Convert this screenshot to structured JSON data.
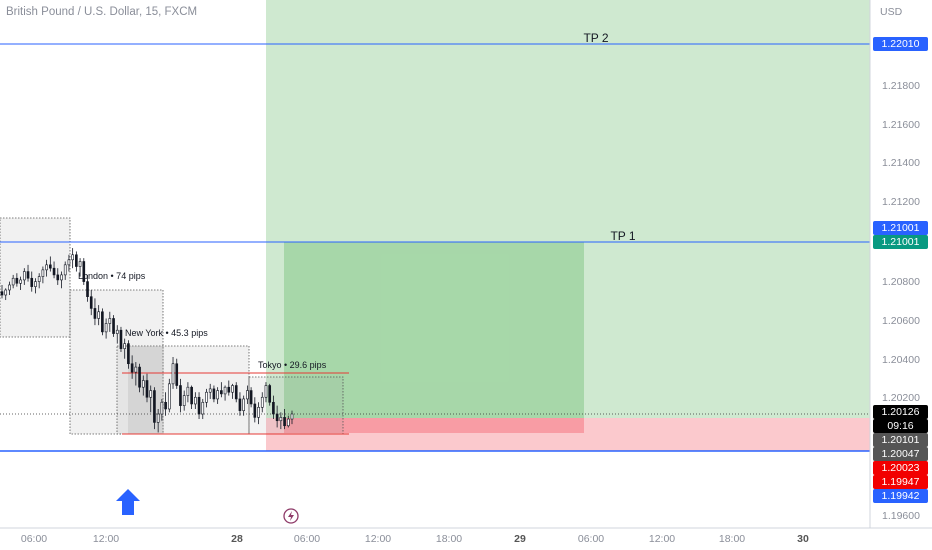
{
  "header": {
    "symbol": "British Pound / U.S. Dollar, 15, FXCM"
  },
  "axis": {
    "currency": "USD"
  },
  "colors": {
    "up": "#26a69a",
    "down": "#ef5350",
    "candle": "#131722",
    "blue_line": "#2962ff",
    "green_zone": "#4caf50",
    "red_zone": "#f23645"
  },
  "chart_data": {
    "type": "candlestick",
    "title": "British Pound / U.S. Dollar, 15, FXCM",
    "y_axis": {
      "label": "USD",
      "range": [
        1.1945,
        1.226
      ],
      "ticks": [
        "1.21800",
        "1.21600",
        "1.21400",
        "1.21200",
        "1.20800",
        "1.20600",
        "1.20400",
        "1.20200",
        "1.19600"
      ]
    },
    "x_axis": {
      "ticks": [
        "06:00",
        "12:00",
        "28",
        "06:00",
        "12:00",
        "18:00",
        "29",
        "06:00",
        "12:00",
        "18:00",
        "30"
      ]
    },
    "horizontal_lines": [
      {
        "label": "TP 2",
        "price": 1.2201
      },
      {
        "label": "TP 1",
        "price": 1.21001
      },
      {
        "label": "",
        "price": 1.19942
      }
    ],
    "price_labels": [
      {
        "value": "1.22010",
        "color": "#2962ff"
      },
      {
        "value": "1.21001",
        "color": "#2962ff"
      },
      {
        "value": "1.21001",
        "color": "#089981"
      },
      {
        "value": "1.20126",
        "color": "#000000"
      },
      {
        "value": "09:16",
        "color": "#000000"
      },
      {
        "value": "1.20101",
        "color": "#555555"
      },
      {
        "value": "1.20047",
        "color": "#555555"
      },
      {
        "value": "1.20023",
        "color": "#f20000"
      },
      {
        "value": "1.19947",
        "color": "#f20000"
      },
      {
        "value": "1.19942",
        "color": "#2962ff"
      }
    ],
    "sessions": [
      {
        "label": "London • 74 pips",
        "high": 1.2112,
        "low": 1.2038
      },
      {
        "label": "New York • 45.3 pips",
        "high": 1.2047,
        "low": 1.20017
      },
      {
        "label": "Tokyo • 29.6 pips",
        "high": 1.2034,
        "low": 1.20044
      }
    ],
    "positions": [
      {
        "entry": 1.20126,
        "target": 1.2201,
        "stop": 1.19942
      },
      {
        "entry": 1.20126,
        "target": 1.21001,
        "stop": 1.20047
      }
    ],
    "candles": [
      [
        1.2086,
        1.209,
        1.2082,
        1.2084
      ],
      [
        1.2084,
        1.2088,
        1.2081,
        1.2087
      ],
      [
        1.2087,
        1.2092,
        1.2084,
        1.209
      ],
      [
        1.209,
        1.2096,
        1.2088,
        1.2094
      ],
      [
        1.2094,
        1.2097,
        1.2089,
        1.2091
      ],
      [
        1.2091,
        1.2095,
        1.2087,
        1.2093
      ],
      [
        1.2093,
        1.21,
        1.209,
        1.2098
      ],
      [
        1.2098,
        1.2102,
        1.2092,
        1.2094
      ],
      [
        1.2094,
        1.2098,
        1.2086,
        1.2089
      ],
      [
        1.2089,
        1.2094,
        1.2085,
        1.2092
      ],
      [
        1.2092,
        1.2097,
        1.2088,
        1.2095
      ],
      [
        1.2095,
        1.2101,
        1.2091,
        1.2099
      ],
      [
        1.2099,
        1.2105,
        1.2095,
        1.2102
      ],
      [
        1.2102,
        1.2107,
        1.2098,
        1.21
      ],
      [
        1.21,
        1.2104,
        1.2094,
        1.2096
      ],
      [
        1.2096,
        1.21,
        1.209,
        1.2093
      ],
      [
        1.2093,
        1.2098,
        1.2088,
        1.2096
      ],
      [
        1.2096,
        1.2104,
        1.2093,
        1.2102
      ],
      [
        1.2102,
        1.2108,
        1.2098,
        1.2105
      ],
      [
        1.2105,
        1.2112,
        1.21,
        1.2108
      ],
      [
        1.2108,
        1.211,
        1.2098,
        1.2101
      ],
      [
        1.2101,
        1.2106,
        1.2095,
        1.2104
      ],
      [
        1.2104,
        1.2106,
        1.209,
        1.2092
      ],
      [
        1.2092,
        1.2096,
        1.208,
        1.2083
      ],
      [
        1.2083,
        1.2087,
        1.2072,
        1.2076
      ],
      [
        1.2076,
        1.2082,
        1.2066,
        1.207
      ],
      [
        1.207,
        1.2078,
        1.2066,
        1.2074
      ],
      [
        1.2074,
        1.2076,
        1.206,
        1.2062
      ],
      [
        1.2062,
        1.207,
        1.2058,
        1.2067
      ],
      [
        1.2067,
        1.2074,
        1.2062,
        1.207
      ],
      [
        1.207,
        1.2072,
        1.2059,
        1.2061
      ],
      [
        1.2061,
        1.2066,
        1.2055,
        1.2063
      ],
      [
        1.2063,
        1.2065,
        1.205,
        1.2052
      ],
      [
        1.2052,
        1.2058,
        1.2046,
        1.2055
      ],
      [
        1.2055,
        1.2057,
        1.204,
        1.2043
      ],
      [
        1.2043,
        1.2048,
        1.2034,
        1.2038
      ],
      [
        1.2038,
        1.2044,
        1.203,
        1.2041
      ],
      [
        1.2041,
        1.2043,
        1.2026,
        1.2029
      ],
      [
        1.2029,
        1.2036,
        1.2024,
        1.2033
      ],
      [
        1.2033,
        1.2037,
        1.202,
        1.2023
      ],
      [
        1.2023,
        1.203,
        1.2014,
        1.2027
      ],
      [
        1.2027,
        1.2029,
        1.2004,
        1.2008
      ],
      [
        1.2008,
        1.2016,
        1.2002,
        1.2013
      ],
      [
        1.2013,
        1.2022,
        1.2009,
        1.202
      ],
      [
        1.202,
        1.2026,
        1.2012,
        1.2016
      ],
      [
        1.2016,
        1.2034,
        1.2014,
        1.2031
      ],
      [
        1.2031,
        1.2047,
        1.2028,
        1.2043
      ],
      [
        1.2043,
        1.2046,
        1.2028,
        1.203
      ],
      [
        1.203,
        1.2034,
        1.2014,
        1.2018
      ],
      [
        1.2018,
        1.2027,
        1.2015,
        1.2024
      ],
      [
        1.2024,
        1.2032,
        1.202,
        1.2029
      ],
      [
        1.2029,
        1.203,
        1.2016,
        1.2019
      ],
      [
        1.2019,
        1.2026,
        1.2016,
        1.2023
      ],
      [
        1.2023,
        1.2026,
        1.201,
        1.2013
      ],
      [
        1.2013,
        1.2022,
        1.201,
        1.202
      ],
      [
        1.202,
        1.2028,
        1.2017,
        1.2026
      ],
      [
        1.2026,
        1.2031,
        1.2022,
        1.2028
      ],
      [
        1.2028,
        1.203,
        1.202,
        1.2022
      ],
      [
        1.2022,
        1.2029,
        1.2019,
        1.2027
      ],
      [
        1.2027,
        1.2032,
        1.2023,
        1.2025
      ],
      [
        1.2025,
        1.203,
        1.2021,
        1.2029
      ],
      [
        1.2029,
        1.2033,
        1.2024,
        1.2026
      ],
      [
        1.2026,
        1.2031,
        1.2022,
        1.203
      ],
      [
        1.203,
        1.2032,
        1.202,
        1.2022
      ],
      [
        1.2022,
        1.2026,
        1.2012,
        1.2015
      ],
      [
        1.2015,
        1.2024,
        1.2012,
        1.2022
      ],
      [
        1.2022,
        1.203,
        1.2019,
        1.2027
      ],
      [
        1.2027,
        1.2029,
        1.2017,
        1.2019
      ],
      [
        1.2019,
        1.2023,
        1.2008,
        1.2011
      ],
      [
        1.2011,
        1.202,
        1.2007,
        1.2017
      ],
      [
        1.2017,
        1.2026,
        1.2014,
        1.2023
      ],
      [
        1.2023,
        1.2032,
        1.202,
        1.203
      ],
      [
        1.203,
        1.2031,
        1.2018,
        1.202
      ],
      [
        1.202,
        1.2024,
        1.201,
        1.2013
      ],
      [
        1.2013,
        1.2018,
        1.2005,
        1.2009
      ],
      [
        1.2009,
        1.2014,
        1.2004,
        1.2011
      ],
      [
        1.2011,
        1.2016,
        1.2004,
        1.2006
      ],
      [
        1.2006,
        1.2012,
        1.2005,
        1.201
      ],
      [
        1.201,
        1.2015,
        1.2007,
        1.2013
      ]
    ]
  }
}
